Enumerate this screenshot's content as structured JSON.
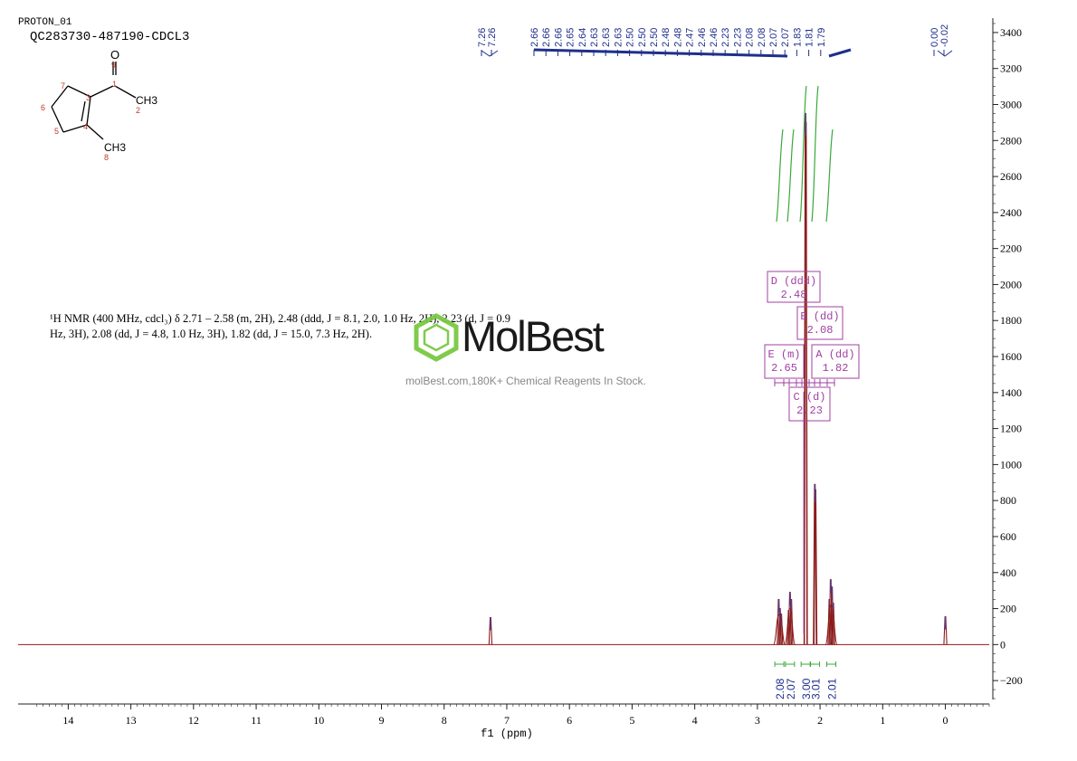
{
  "header": {
    "experiment": "PROTON_01",
    "sample": "QC283730-487190-CDCL3"
  },
  "description": {
    "lines": [
      "¹H NMR (400 MHz, cdcl₃) δ 2.71 – 2.58 (m, 2H), 2.48 (ddd, J = 8.1, 2.0, 1.0 Hz, 2H), 2.23 (d, J = 0.9",
      "Hz, 3H), 2.08 (dd, J = 4.8, 1.0 Hz, 3H), 1.82 (dd, J = 15.0, 7.3 Hz, 2H)."
    ]
  },
  "watermark": {
    "brand": "MolBest",
    "tagline": "molBest.com,180K+ Chemical Reagents In Stock."
  },
  "structure": {
    "atom_labels": [
      "O",
      "CH3",
      "CH3"
    ],
    "numbers": [
      "9",
      "1",
      "2",
      "3",
      "4",
      "5",
      "6",
      "7",
      "8"
    ]
  },
  "chart_data": {
    "type": "line",
    "title": "",
    "xlabel": "f1 (ppm)",
    "ylabel": "",
    "xlim": [
      14.8,
      -0.7
    ],
    "ylim": [
      -330,
      3480
    ],
    "x_ticks": [
      14,
      13,
      12,
      11,
      10,
      9,
      8,
      7,
      6,
      5,
      4,
      3,
      2,
      1,
      0
    ],
    "y_ticks": [
      3400,
      3200,
      3000,
      2800,
      2600,
      2400,
      2200,
      2000,
      1800,
      1600,
      1400,
      1200,
      1000,
      800,
      600,
      400,
      200,
      0,
      -200
    ],
    "peaks": [
      {
        "ppm": 7.26,
        "height": 150
      },
      {
        "ppm": 2.66,
        "height": 250
      },
      {
        "ppm": 2.64,
        "height": 200
      },
      {
        "ppm": 2.62,
        "height": 170
      },
      {
        "ppm": 2.5,
        "height": 190
      },
      {
        "ppm": 2.48,
        "height": 290
      },
      {
        "ppm": 2.46,
        "height": 250
      },
      {
        "ppm": 2.232,
        "height": 2950
      },
      {
        "ppm": 2.226,
        "height": 2900
      },
      {
        "ppm": 2.083,
        "height": 890
      },
      {
        "ppm": 2.073,
        "height": 860
      },
      {
        "ppm": 1.85,
        "height": 250
      },
      {
        "ppm": 1.83,
        "height": 360
      },
      {
        "ppm": 1.81,
        "height": 320
      },
      {
        "ppm": 1.79,
        "height": 230
      },
      {
        "ppm": 0.0,
        "height": 155
      }
    ],
    "peak_labels": [
      "7.26",
      "7.26",
      "2.66",
      "2.66",
      "2.66",
      "2.65",
      "2.64",
      "2.63",
      "2.63",
      "2.63",
      "2.50",
      "2.50",
      "2.50",
      "2.48",
      "2.48",
      "2.47",
      "2.46",
      "2.46",
      "2.23",
      "2.23",
      "2.08",
      "2.08",
      "2.07",
      "2.07",
      "1.83",
      "1.81",
      "1.79",
      "0.00",
      "-0.02"
    ],
    "multiplets": [
      {
        "letter": "D",
        "type": "ddd",
        "shift": "2.48"
      },
      {
        "letter": "B",
        "type": "dd",
        "shift": "2.08"
      },
      {
        "letter": "E",
        "type": "m",
        "shift": "2.65"
      },
      {
        "letter": "A",
        "type": "dd",
        "shift": "1.82"
      },
      {
        "letter": "C",
        "type": "d",
        "shift": "2.23"
      }
    ],
    "integrals": [
      {
        "ppm": 2.65,
        "value": "2.08"
      },
      {
        "ppm": 2.48,
        "value": "2.07"
      },
      {
        "ppm": 2.23,
        "value": "3.00"
      },
      {
        "ppm": 2.08,
        "value": "3.01"
      },
      {
        "ppm": 1.82,
        "value": "2.01"
      }
    ]
  },
  "colors": {
    "spectrum": "#8b1a1a",
    "peak_label": "#1f2f8a",
    "integral": "#3aa83a",
    "multiplet": "#a040a0",
    "axis": "#222222"
  }
}
